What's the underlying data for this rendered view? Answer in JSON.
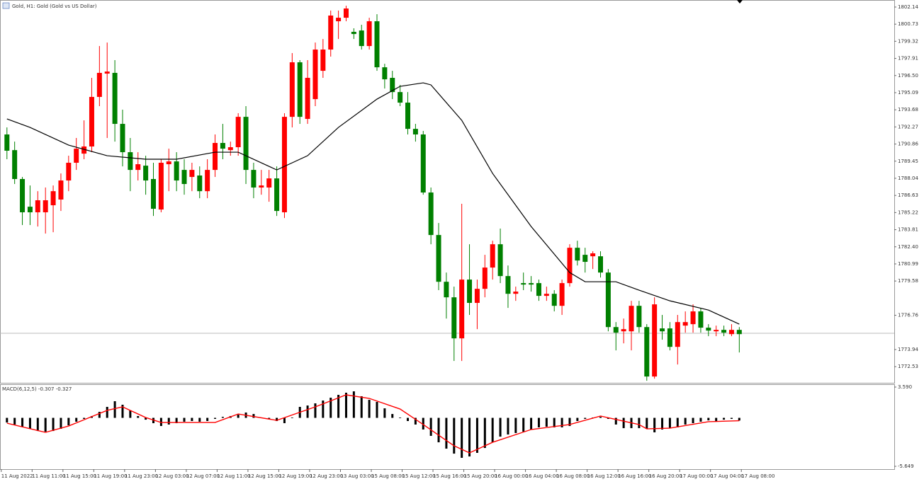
{
  "chart_data": [
    {
      "type": "candlestick",
      "title": "Gold, H1: Gold (Gold vs US Dollar)",
      "up_color": "#ff0000",
      "down_color": "#008000",
      "ohlc": [
        [
          1791.65,
          1792.23,
          1789.61,
          1790.31
        ],
        [
          1790.36,
          1791.06,
          1787.57,
          1787.98
        ],
        [
          1787.98,
          1788.15,
          1784.19,
          1785.24
        ],
        [
          1785.7,
          1787.45,
          1784.19,
          1785.24
        ],
        [
          1785.24,
          1786.98,
          1784.07,
          1786.23
        ],
        [
          1785.24,
          1787.28,
          1783.49,
          1786.23
        ],
        [
          1785.82,
          1787.45,
          1783.6,
          1786.98
        ],
        [
          1786.29,
          1788.44,
          1785.35,
          1787.86
        ],
        [
          1787.86,
          1789.9,
          1786.98,
          1789.32
        ],
        [
          1789.32,
          1791.36,
          1788.73,
          1790.48
        ],
        [
          1790.07,
          1792.81,
          1789.61,
          1790.66
        ],
        [
          1790.66,
          1796.31,
          1790.19,
          1794.74
        ],
        [
          1794.74,
          1798.93,
          1793.98,
          1796.72
        ],
        [
          1796.66,
          1799.22,
          1791.36,
          1796.83
        ],
        [
          1796.72,
          1797.77,
          1791.06,
          1792.52
        ],
        [
          1792.52,
          1793.69,
          1789.02,
          1790.19
        ],
        [
          1790.19,
          1791.36,
          1786.98,
          1788.73
        ],
        [
          1788.73,
          1790.19,
          1787.86,
          1789.2
        ],
        [
          1789.08,
          1789.9,
          1786.69,
          1787.86
        ],
        [
          1787.98,
          1789.32,
          1784.94,
          1785.53
        ],
        [
          1785.47,
          1789.61,
          1785.24,
          1789.32
        ],
        [
          1789.2,
          1790.48,
          1786.98,
          1789.43
        ],
        [
          1789.43,
          1790.19,
          1786.98,
          1787.86
        ],
        [
          1788.73,
          1789.61,
          1786.69,
          1787.57
        ],
        [
          1788.15,
          1789.32,
          1786.98,
          1788.73
        ],
        [
          1788.27,
          1789.02,
          1786.4,
          1786.98
        ],
        [
          1786.98,
          1789.61,
          1786.4,
          1788.73
        ],
        [
          1788.73,
          1791.65,
          1788.15,
          1790.95
        ],
        [
          1790.95,
          1792.52,
          1789.61,
          1790.48
        ],
        [
          1790.36,
          1791.06,
          1789.9,
          1790.6
        ],
        [
          1790.6,
          1793.4,
          1789.9,
          1793.1
        ],
        [
          1793.1,
          1793.98,
          1787.57,
          1788.73
        ],
        [
          1788.73,
          1789.32,
          1786.4,
          1787.28
        ],
        [
          1787.28,
          1788.73,
          1786.69,
          1787.45
        ],
        [
          1787.28,
          1788.73,
          1786.11,
          1788.03
        ],
        [
          1788.03,
          1789.02,
          1784.94,
          1785.35
        ],
        [
          1785.24,
          1793.4,
          1784.77,
          1793.1
        ],
        [
          1793.1,
          1798.35,
          1792.23,
          1797.59
        ],
        [
          1797.59,
          1797.77,
          1792.52,
          1793.1
        ],
        [
          1792.93,
          1797.77,
          1792.52,
          1796.31
        ],
        [
          1794.56,
          1799.22,
          1793.98,
          1798.64
        ],
        [
          1796.89,
          1799.51,
          1796.31,
          1798.64
        ],
        [
          1798.64,
          1801.85,
          1798.06,
          1801.44
        ],
        [
          1800.97,
          1801.85,
          1799.51,
          1801.26
        ],
        [
          1801.26,
          1802.25,
          1800.97,
          1802.02
        ],
        [
          1800.1,
          1800.39,
          1799.51,
          1799.92
        ],
        [
          1800.21,
          1800.68,
          1798.64,
          1798.93
        ],
        [
          1798.93,
          1801.26,
          1798.64,
          1800.97
        ],
        [
          1800.97,
          1801.55,
          1796.89,
          1797.18
        ],
        [
          1797.18,
          1797.47,
          1795.43,
          1796.19
        ],
        [
          1796.31,
          1796.89,
          1794.56,
          1795.14
        ],
        [
          1795.14,
          1795.73,
          1793.98,
          1794.27
        ],
        [
          1794.27,
          1795.14,
          1791.65,
          1792.11
        ],
        [
          1792.11,
          1792.52,
          1791.06,
          1791.65
        ],
        [
          1791.65,
          1791.94,
          1786.69,
          1786.87
        ],
        [
          1786.87,
          1787.28,
          1782.61,
          1783.37
        ],
        [
          1783.37,
          1784.36,
          1778.83,
          1779.52
        ],
        [
          1779.52,
          1780.28,
          1776.49,
          1778.24
        ],
        [
          1778.24,
          1779.12,
          1773.0,
          1774.86
        ],
        [
          1774.86,
          1785.94,
          1773.0,
          1779.7
        ],
        [
          1779.7,
          1782.61,
          1776.79,
          1777.78
        ],
        [
          1777.78,
          1779.7,
          1775.62,
          1778.94
        ],
        [
          1778.94,
          1781.74,
          1778.24,
          1780.69
        ],
        [
          1780.69,
          1782.9,
          1779.7,
          1782.61
        ],
        [
          1782.61,
          1783.9,
          1779.41,
          1779.99
        ],
        [
          1779.99,
          1780.86,
          1777.37,
          1778.53
        ],
        [
          1778.53,
          1779.12,
          1777.95,
          1778.71
        ],
        [
          1779.41,
          1780.28,
          1778.83,
          1779.29
        ],
        [
          1779.41,
          1779.99,
          1778.71,
          1779.29
        ],
        [
          1779.41,
          1779.7,
          1777.95,
          1778.36
        ],
        [
          1778.36,
          1779.12,
          1777.95,
          1778.53
        ],
        [
          1778.53,
          1778.83,
          1777.08,
          1777.54
        ],
        [
          1777.54,
          1779.7,
          1776.79,
          1779.41
        ],
        [
          1779.41,
          1782.61,
          1779.12,
          1782.32
        ],
        [
          1782.32,
          1782.9,
          1780.86,
          1781.27
        ],
        [
          1781.74,
          1782.32,
          1780.28,
          1781.16
        ],
        [
          1781.62,
          1782.03,
          1780.57,
          1781.86
        ],
        [
          1781.62,
          1782.03,
          1779.87,
          1780.28
        ],
        [
          1780.28,
          1780.57,
          1775.44,
          1775.79
        ],
        [
          1775.79,
          1776.2,
          1773.87,
          1775.33
        ],
        [
          1775.44,
          1776.49,
          1774.45,
          1775.62
        ],
        [
          1775.44,
          1777.95,
          1773.87,
          1777.54
        ],
        [
          1777.54,
          1777.95,
          1775.33,
          1775.79
        ],
        [
          1775.79,
          1776.03,
          1771.37,
          1771.72
        ],
        [
          1771.72,
          1778.24,
          1771.54,
          1777.66
        ],
        [
          1775.68,
          1776.79,
          1774.75,
          1775.44
        ],
        [
          1775.68,
          1776.2,
          1773.87,
          1774.16
        ],
        [
          1774.16,
          1776.79,
          1772.71,
          1776.2
        ],
        [
          1775.91,
          1777.08,
          1775.33,
          1776.2
        ],
        [
          1776.03,
          1777.66,
          1775.33,
          1777.08
        ],
        [
          1777.08,
          1777.37,
          1775.33,
          1775.74
        ],
        [
          1775.74,
          1776.03,
          1775.04,
          1775.5
        ],
        [
          1775.44,
          1775.91,
          1775.04,
          1775.56
        ],
        [
          1775.56,
          1775.91,
          1775.04,
          1775.33
        ],
        [
          1775.21,
          1776.03,
          1775.04,
          1775.56
        ],
        [
          1775.56,
          1775.79,
          1773.7,
          1775.21
        ]
      ],
      "lines": [
        {
          "color": "#000000",
          "x": [
            0,
            3,
            8,
            13,
            18,
            22,
            27,
            30,
            35,
            39,
            43,
            48,
            51,
            54,
            55,
            59,
            63,
            68,
            73,
            75,
            79,
            82,
            86,
            91,
            95
          ],
          "values": [
            1792.93,
            1792.23,
            1790.77,
            1789.9,
            1789.61,
            1789.61,
            1790.19,
            1790.19,
            1788.73,
            1789.9,
            1792.23,
            1794.56,
            1795.61,
            1795.9,
            1795.73,
            1792.81,
            1788.44,
            1784.07,
            1780.28,
            1779.52,
            1779.52,
            1778.83,
            1777.95,
            1777.19,
            1776.03
          ]
        }
      ],
      "xlim": [
        -0.9,
        115.1
      ],
      "xticks": [
        {
          "value": 0,
          "label": "11 Aug 2022"
        },
        {
          "value": 4,
          "label": "11 Aug 11:00"
        },
        {
          "value": 8,
          "label": "11 Aug 15:00"
        },
        {
          "value": 12,
          "label": "11 Aug 19:00"
        },
        {
          "value": 16,
          "label": "11 Aug 23:00"
        },
        {
          "value": 20,
          "label": "12 Aug 03:00"
        },
        {
          "value": 24,
          "label": "12 Aug 07:00"
        },
        {
          "value": 28,
          "label": "12 Aug 11:00"
        },
        {
          "value": 32,
          "label": "12 Aug 15:00"
        },
        {
          "value": 36,
          "label": "12 Aug 19:00"
        },
        {
          "value": 40,
          "label": "12 Aug 23:00"
        },
        {
          "value": 44,
          "label": "13 Aug 03:00"
        },
        {
          "value": 48,
          "label": "15 Aug 08:00"
        },
        {
          "value": 52,
          "label": "15 Aug 12:00"
        },
        {
          "value": 56,
          "label": "15 Aug 16:00"
        },
        {
          "value": 60,
          "label": "15 Aug 20:00"
        },
        {
          "value": 64,
          "label": "16 Aug 00:00"
        },
        {
          "value": 68,
          "label": "16 Aug 04:00"
        },
        {
          "value": 72,
          "label": "16 Aug 08:00"
        },
        {
          "value": 76,
          "label": "16 Aug 12:00"
        },
        {
          "value": 80,
          "label": "16 Aug 16:00"
        },
        {
          "value": 84,
          "label": "16 Aug 20:00"
        },
        {
          "value": 88,
          "label": "17 Aug 00:00"
        },
        {
          "value": 92,
          "label": "17 Aug 04:00"
        },
        {
          "value": 96,
          "label": "17 Aug 08:00"
        }
      ],
      "ylim": [
        1771.2,
        1802.72
      ],
      "yticks": [
        1802.14,
        1800.73,
        1799.32,
        1797.91,
        {
          "value": 1796.5,
          "label": "1796.50"
        },
        1795.09,
        1793.68,
        1792.27,
        1790.86,
        1789.45,
        1788.04,
        1786.63,
        1785.22,
        1783.81,
        {
          "value": 1782.4,
          "label": "1782.40"
        },
        1780.99,
        1779.58,
        1776.76,
        1773.94,
        1772.53
      ]
    },
    {
      "type": "macd",
      "title": "MACD(6,12,5) -0.307 -0.327",
      "color": "#000000",
      "values": [
        -0.54,
        -0.78,
        -1.03,
        -1.28,
        -1.53,
        -1.61,
        -1.53,
        -1.28,
        -0.87,
        -0.45,
        -0.12,
        0.21,
        0.7,
        1.28,
        1.94,
        1.53,
        0.87,
        0.21,
        -0.21,
        -0.62,
        -0.95,
        -0.78,
        -0.62,
        -0.45,
        -0.37,
        -0.45,
        -0.37,
        -0.12,
        0.12,
        0.21,
        0.37,
        0.62,
        0.45,
        0.04,
        -0.12,
        -0.37,
        -0.62,
        0.04,
        1.28,
        1.44,
        1.69,
        2.02,
        2.35,
        2.68,
        2.93,
        3.09,
        2.52,
        2.1,
        1.86,
        1.11,
        0.45,
        0.04,
        -0.37,
        -0.78,
        -1.36,
        -2.1,
        -2.85,
        -3.59,
        -4.17,
        -4.66,
        -4.5,
        -4.08,
        -3.51,
        -2.85,
        -2.19,
        -1.94,
        -1.77,
        -1.61,
        -1.36,
        -1.11,
        -1.03,
        -1.11,
        -1.11,
        -0.95,
        -0.37,
        -0.12,
        0.04,
        0.12,
        -0.12,
        -0.78,
        -1.2,
        -1.2,
        -1.2,
        -1.28,
        -1.69,
        -1.36,
        -1.2,
        -1.11,
        -0.78,
        -0.62,
        -0.45,
        -0.29,
        -0.37,
        -0.21,
        -0.12,
        -0.31
      ],
      "signal": {
        "color": "#ff0000",
        "x": [
          0,
          5,
          8,
          13,
          15,
          18,
          20,
          27,
          30,
          35,
          40,
          44,
          47,
          51,
          54,
          58,
          60,
          63,
          68,
          73,
          77,
          82,
          83,
          86,
          91,
          95
        ],
        "values": [
          -0.62,
          -1.69,
          -0.95,
          0.87,
          1.28,
          0.04,
          -0.54,
          -0.54,
          0.45,
          -0.29,
          1.28,
          2.68,
          2.27,
          1.03,
          -0.78,
          -3.26,
          -4.08,
          -2.85,
          -1.36,
          -0.78,
          0.21,
          -0.78,
          -1.28,
          -1.2,
          -0.45,
          -0.33
        ]
      },
      "ylim": [
        -5.979,
        3.92
      ],
      "yticks": [
        {
          "value": 3.59,
          "label": "3.590"
        },
        -5.649
      ]
    }
  ]
}
